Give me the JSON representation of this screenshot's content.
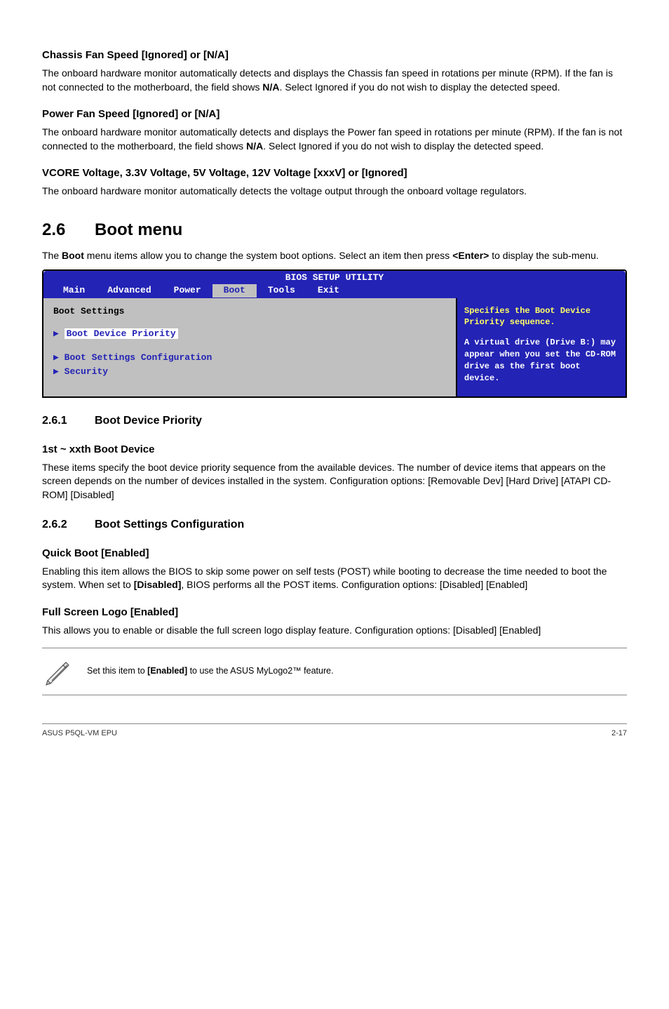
{
  "s1": {
    "h": "Chassis Fan Speed [Ignored] or [N/A]",
    "p": "The onboard hardware monitor automatically detects and displays the Chassis fan speed in rotations per minute (RPM). If the fan is not connected to the motherboard, the field shows ",
    "b": "N/A",
    "p2": ". Select Ignored if you do not wish to display the detected speed."
  },
  "s2": {
    "h": "Power Fan Speed [Ignored] or [N/A]",
    "p": "The onboard hardware monitor automatically detects and displays the Power fan speed in rotations per minute (RPM). If the fan is not connected to the motherboard, the field shows ",
    "b": "N/A",
    "p2": ". Select Ignored if you do not wish to display the detected speed."
  },
  "s3": {
    "h": "VCORE Voltage, 3.3V Voltage, 5V Voltage, 12V Voltage [xxxV] or [Ignored]",
    "p": "The onboard hardware monitor automatically detects the voltage output through the onboard voltage regulators."
  },
  "sec26": {
    "num": "2.6",
    "title": "Boot menu",
    "intro1": "The ",
    "introB": "Boot",
    "intro2": " menu items allow you to change the system boot options. Select an item then press ",
    "introB2": "<Enter>",
    "intro3": " to display the sub-menu."
  },
  "bios": {
    "title": "BIOS SETUP UTILITY",
    "tabs": [
      "Main",
      "Advanced",
      "Power",
      "Boot",
      "Tools",
      "Exit"
    ],
    "selected": 3,
    "left_header": "Boot Settings",
    "items": [
      "Boot Device Priority",
      "Boot Settings Configuration",
      "Security"
    ],
    "highlighted": 0,
    "right_y": "Specifies the Boot Device Priority sequence.",
    "right_w": "A virtual drive (Drive B:) may appear when you set the CD-ROM drive as the first boot device."
  },
  "sub261": {
    "num": "2.6.1",
    "title": "Boot Device Priority",
    "h": "1st ~ xxth Boot Device",
    "p": "These items specify the boot device priority sequence from the available devices. The number of device items that appears on the screen depends on the number of devices installed in the system. Configuration options: [Removable Dev] [Hard Drive] [ATAPI CD-ROM] [Disabled]"
  },
  "sub262": {
    "num": "2.6.2",
    "title": "Boot Settings Configuration",
    "h1": "Quick Boot [Enabled]",
    "p1a": "Enabling this item allows the BIOS to skip some power on self tests (POST) while booting to decrease the time needed to boot the system. When set to ",
    "p1b": "[Disabled]",
    "p1c": ", BIOS performs all the POST items. Configuration options: [Disabled] [Enabled]",
    "h2": "Full Screen Logo [Enabled]",
    "p2": "This allows you to enable or disable the full screen logo display feature. Configuration options: [Disabled] [Enabled]"
  },
  "note": {
    "t1": "Set this item to ",
    "tb": "[Enabled]",
    "t2": " to use the ASUS MyLogo2™ feature."
  },
  "footer": {
    "left": "ASUS P5QL-VM EPU",
    "right": "2-17"
  }
}
